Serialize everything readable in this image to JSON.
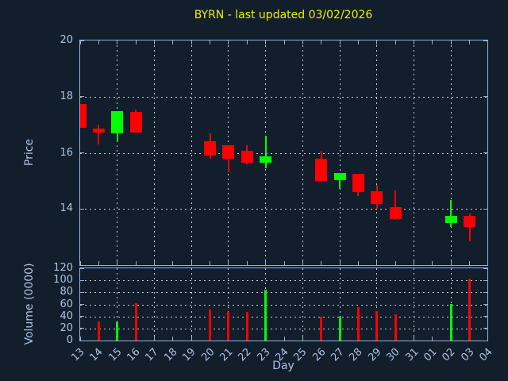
{
  "title": "BYRN - last updated 03/02/2026",
  "axis_labels": {
    "price": "Price",
    "volume": "Volume (0000)",
    "x": "Day"
  },
  "colors": {
    "background": "#121e2c",
    "spine": "#93b2d8",
    "grid": "#c6cbd2",
    "tick_label": "#a9c3e1",
    "title": "#f0f000",
    "up": "#00ff00",
    "down": "#ff0000"
  },
  "chart_data": {
    "type": "candlestick+volume-bar",
    "title": "BYRN - last updated 03/02/2026",
    "xlabel": "Day",
    "price_ylabel": "Price",
    "volume_ylabel": "Volume (0000)",
    "x_ticklabels": [
      "13",
      "14",
      "15",
      "16",
      "17",
      "18",
      "19",
      "20",
      "21",
      "22",
      "23",
      "24",
      "25",
      "26",
      "27",
      "28",
      "29",
      "30",
      "31",
      "01",
      "02",
      "03",
      "04"
    ],
    "price_ylim": [
      12,
      20
    ],
    "price_yticks": [
      14,
      16,
      18,
      20
    ],
    "price_gridlines": [
      14,
      16,
      18
    ],
    "volume_ylim": [
      0,
      120
    ],
    "volume_yticks": [
      0,
      20,
      40,
      60,
      80,
      100,
      120
    ],
    "volume_gridlines": [
      20,
      40,
      60,
      80,
      100
    ],
    "vertical_grid_day_indices": [
      2,
      4,
      6,
      8,
      10,
      12,
      14,
      16,
      18,
      20
    ],
    "grid": true,
    "legend": false,
    "candles": [
      {
        "day": "13",
        "open": 17.75,
        "high": 17.75,
        "low": 16.9,
        "close": 16.9
      },
      {
        "day": "14",
        "open": 16.85,
        "high": 17.0,
        "low": 16.3,
        "close": 16.72
      },
      {
        "day": "15",
        "open": 16.7,
        "high": 17.48,
        "low": 16.4,
        "close": 17.48
      },
      {
        "day": "16",
        "open": 17.45,
        "high": 17.55,
        "low": 16.73,
        "close": 16.73
      },
      {
        "day": "20",
        "open": 16.42,
        "high": 16.7,
        "low": 15.8,
        "close": 15.9
      },
      {
        "day": "21",
        "open": 16.28,
        "high": 16.28,
        "low": 15.32,
        "close": 15.8
      },
      {
        "day": "22",
        "open": 16.06,
        "high": 16.28,
        "low": 15.6,
        "close": 15.66
      },
      {
        "day": "23",
        "open": 15.66,
        "high": 16.6,
        "low": 15.45,
        "close": 15.88
      },
      {
        "day": "26",
        "open": 15.79,
        "high": 16.08,
        "low": 14.96,
        "close": 15.01
      },
      {
        "day": "27",
        "open": 15.03,
        "high": 15.27,
        "low": 14.7,
        "close": 15.27
      },
      {
        "day": "28",
        "open": 15.26,
        "high": 15.26,
        "low": 14.45,
        "close": 14.59
      },
      {
        "day": "29",
        "open": 14.63,
        "high": 14.86,
        "low": 14.0,
        "close": 14.17
      },
      {
        "day": "30",
        "open": 14.07,
        "high": 14.66,
        "low": 13.6,
        "close": 13.65
      },
      {
        "day": "02",
        "open": 13.51,
        "high": 14.32,
        "low": 13.37,
        "close": 13.76
      },
      {
        "day": "03",
        "open": 13.74,
        "high": 13.85,
        "low": 12.86,
        "close": 13.37
      }
    ],
    "volumes": [
      {
        "day": "14",
        "value": 32
      },
      {
        "day": "15",
        "value": 30
      },
      {
        "day": "16",
        "value": 62
      },
      {
        "day": "20",
        "value": 52
      },
      {
        "day": "21",
        "value": 47
      },
      {
        "day": "22",
        "value": 48
      },
      {
        "day": "23",
        "value": 84
      },
      {
        "day": "26",
        "value": 40
      },
      {
        "day": "27",
        "value": 40
      },
      {
        "day": "28",
        "value": 55
      },
      {
        "day": "29",
        "value": 49
      },
      {
        "day": "30",
        "value": 43
      },
      {
        "day": "02",
        "value": 61
      },
      {
        "day": "03",
        "value": 103
      }
    ]
  }
}
